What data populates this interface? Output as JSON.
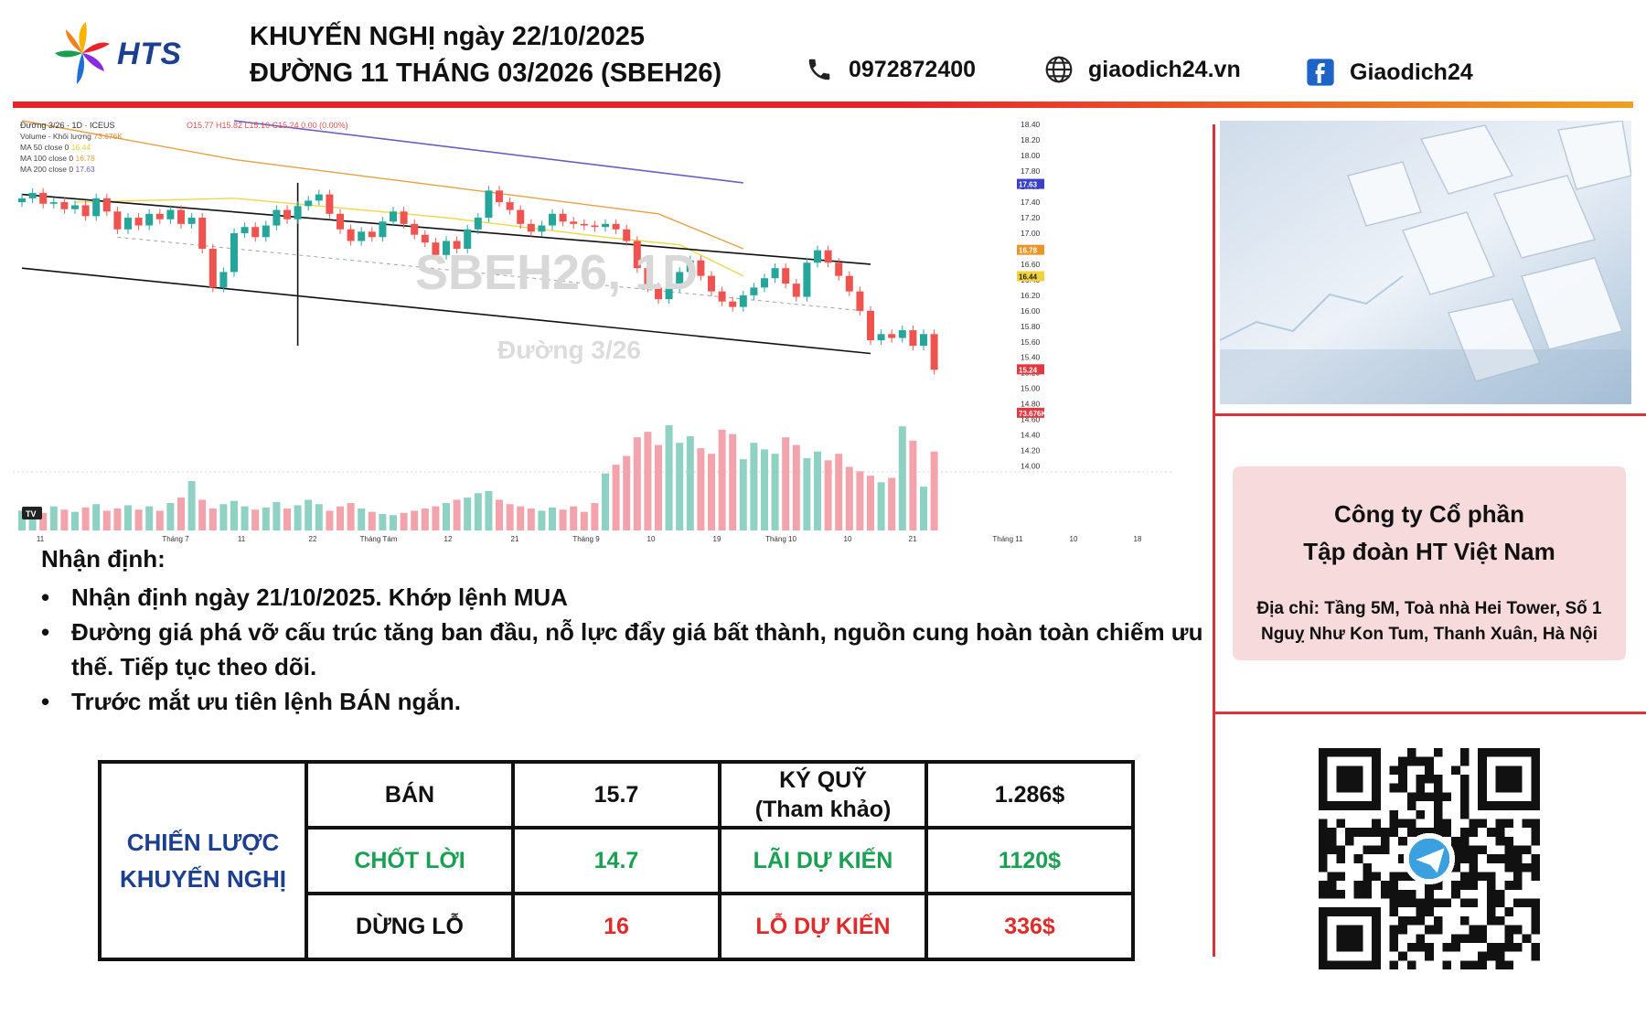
{
  "header": {
    "logo_text": "HTS",
    "title_line1": "KHUYẾN NGHỊ ngày 22/10/2025",
    "title_line2": "ĐƯỜNG 11 THÁNG 03/2026 (SBEH26)",
    "phone": "0972872400",
    "website": "giaodich24.vn",
    "facebook": "Giaodich24",
    "icons": [
      "phone-icon",
      "globe-icon",
      "facebook-icon"
    ],
    "accent_red": "#e8232a",
    "accent_orange": "#f0a020"
  },
  "chart_data": {
    "type": "candlestick",
    "symbol_title": "Đường 3/26 · 1D · ICEUS",
    "ohlc_text": "O15.77 H15.82 L15.10 C15.24 0.00 (0.00%)",
    "legend": [
      {
        "label": "Volume - Khối lượng",
        "value": "73.676K",
        "color": "#e08a3a"
      },
      {
        "label": "MA 50 close 0",
        "value": "16.44",
        "color": "#e8d23a"
      },
      {
        "label": "MA 100 close 0",
        "value": "16.78",
        "color": "#e8a040"
      },
      {
        "label": "MA 200 close 0",
        "value": "17.63",
        "color": "#6a5fc0"
      }
    ],
    "watermark": "SBEH26, 1D",
    "watermark_sub": "Đường 3/26",
    "x_tick_labels": [
      "11",
      "Tháng 7",
      "11",
      "22",
      "Tháng Tám",
      "12",
      "21",
      "Tháng 9",
      "10",
      "19",
      "Tháng 10",
      "10",
      "21",
      "Tháng 11",
      "10",
      "18"
    ],
    "y_ticks": [
      14.0,
      14.2,
      14.4,
      14.6,
      14.8,
      15.0,
      15.2,
      15.4,
      15.6,
      15.8,
      16.0,
      16.2,
      16.4,
      16.6,
      16.8,
      17.0,
      17.2,
      17.4,
      17.6,
      17.8,
      18.0,
      18.2,
      18.4
    ],
    "ylim": [
      13.9,
      18.45
    ],
    "price_badges": [
      {
        "label": "17.63",
        "value": 17.63,
        "color": "#3a40c8"
      },
      {
        "label": "16.78",
        "value": 16.78,
        "color": "#e8952a"
      },
      {
        "label": "16.44",
        "value": 16.44,
        "color": "#f2d23a"
      },
      {
        "label": "15.24",
        "value": 15.24,
        "color": "#e03a40"
      },
      {
        "label": "73.676K",
        "value": 14.68,
        "color": "#e03a40"
      }
    ],
    "closes": [
      17.45,
      17.52,
      17.38,
      17.4,
      17.31,
      17.36,
      17.22,
      17.45,
      17.28,
      17.05,
      17.2,
      17.1,
      17.25,
      17.18,
      17.3,
      17.12,
      17.2,
      16.8,
      16.3,
      16.5,
      17.0,
      17.08,
      16.95,
      17.1,
      17.3,
      17.18,
      17.35,
      17.42,
      17.5,
      17.25,
      17.05,
      16.9,
      17.02,
      16.95,
      17.15,
      17.28,
      17.12,
      16.98,
      16.88,
      16.72,
      16.9,
      16.8,
      17.05,
      17.2,
      17.55,
      17.4,
      17.3,
      17.12,
      17.02,
      17.1,
      17.25,
      17.15,
      17.12,
      17.1,
      17.08,
      17.12,
      17.05,
      16.9,
      16.55,
      16.3,
      16.15,
      16.3,
      16.5,
      16.65,
      16.45,
      16.25,
      16.12,
      16.05,
      16.2,
      16.3,
      16.42,
      16.55,
      16.35,
      16.18,
      16.62,
      16.78,
      16.62,
      16.45,
      16.25,
      16.0,
      15.62,
      15.7,
      15.65,
      15.75,
      15.55,
      15.7,
      15.24
    ],
    "volumes": [
      18,
      20,
      16,
      22,
      19,
      17,
      21,
      24,
      18,
      20,
      23,
      19,
      22,
      18,
      25,
      30,
      45,
      28,
      20,
      24,
      27,
      22,
      19,
      21,
      26,
      20,
      23,
      28,
      24,
      18,
      22,
      25,
      20,
      17,
      15,
      14,
      16,
      18,
      20,
      22,
      25,
      28,
      30,
      34,
      36,
      28,
      24,
      22,
      20,
      18,
      21,
      19,
      22,
      17,
      25,
      52,
      60,
      68,
      85,
      90,
      78,
      96,
      80,
      86,
      75,
      70,
      92,
      88,
      65,
      80,
      74,
      70,
      85,
      78,
      66,
      72,
      64,
      70,
      58,
      54,
      50,
      44,
      48,
      95,
      82,
      40,
      72
    ],
    "channel_upper": [
      [
        0,
        17.5
      ],
      [
        80,
        16.6
      ]
    ],
    "channel_lower": [
      [
        0,
        16.55
      ],
      [
        80,
        15.45
      ]
    ],
    "dashed_mid": [
      [
        9,
        16.95
      ],
      [
        80,
        15.99
      ]
    ],
    "ma200_points": [
      [
        20,
        18.45
      ],
      [
        68,
        17.65
      ]
    ],
    "ma100_points": [
      [
        0,
        18.45
      ],
      [
        20,
        17.95
      ],
      [
        40,
        17.6
      ],
      [
        60,
        17.25
      ],
      [
        68,
        16.8
      ]
    ],
    "ma50_points": [
      [
        5,
        17.4
      ],
      [
        20,
        17.45
      ],
      [
        40,
        17.2
      ],
      [
        55,
        16.95
      ],
      [
        62,
        16.85
      ],
      [
        68,
        16.45
      ]
    ]
  },
  "analysis": {
    "title": "Nhận định:",
    "bullets": [
      "Nhận định ngày 21/10/2025. Khớp lệnh MUA",
      "Đường giá phá vỡ cấu trúc tăng ban đầu, nỗ lực đẩy giá bất thành, nguồn cung hoàn toàn chiếm ưu thế. Tiếp tục theo dõi.",
      "Trước mắt ưu tiên lệnh BÁN ngắn."
    ],
    "bullet_symbol": "•"
  },
  "strategy": {
    "header": "CHIẾN LƯỢC KHUYẾN NGHỊ",
    "rows": [
      {
        "label": "BÁN",
        "price": "15.7",
        "metric": "KÝ QUỸ (Tham khảo)",
        "amount": "1.286$",
        "tone": "black"
      },
      {
        "label": "CHỐT LỜI",
        "price": "14.7",
        "metric": "LÃI DỰ KIẾN",
        "amount": "1120$",
        "tone": "green"
      },
      {
        "label": "DỪNG LỖ",
        "price": "16",
        "metric": "LỖ DỰ KIẾN",
        "amount": "336$",
        "tone": "red"
      }
    ],
    "colors": {
      "green": "#1aa052",
      "red": "#e02b2b",
      "header": "#1d3f8f"
    }
  },
  "company": {
    "name_line1": "Công ty Cổ phần",
    "name_line2": "Tập đoàn HT Việt Nam",
    "address_line1": "Địa chỉ: Tầng 5M, Toà nhà Hei Tower, Số 1",
    "address_line2": "Nguỵ Như Kon Tum, Thanh Xuân, Hà Nội"
  }
}
